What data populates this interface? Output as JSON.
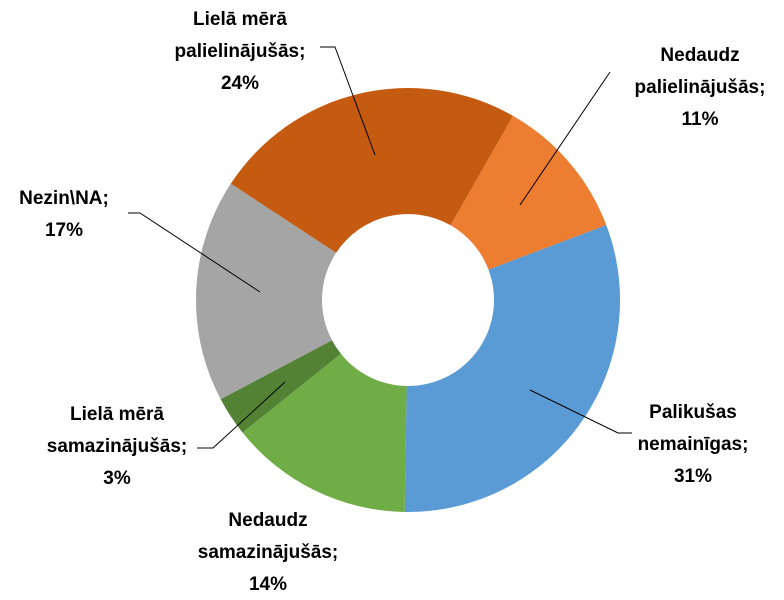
{
  "chart_data": {
    "type": "donut",
    "categories": [
      "Nedaudz palielinājušās",
      "Palikušas nemainīgas",
      "Nedaudz samazinājušās",
      "Lielā mērā samazinājušās",
      "Nezin\\NA",
      "Lielā mērā palielinājušās"
    ],
    "values": [
      11,
      31,
      14,
      3,
      17,
      24
    ],
    "value_labels": [
      "11%",
      "31%",
      "14%",
      "3%",
      "17%",
      "24%"
    ],
    "label_separator": ";",
    "colors": [
      "#ED7D31",
      "#5B9BD5",
      "#70AD47",
      "#548235",
      "#A5A5A5",
      "#C55A11"
    ]
  }
}
